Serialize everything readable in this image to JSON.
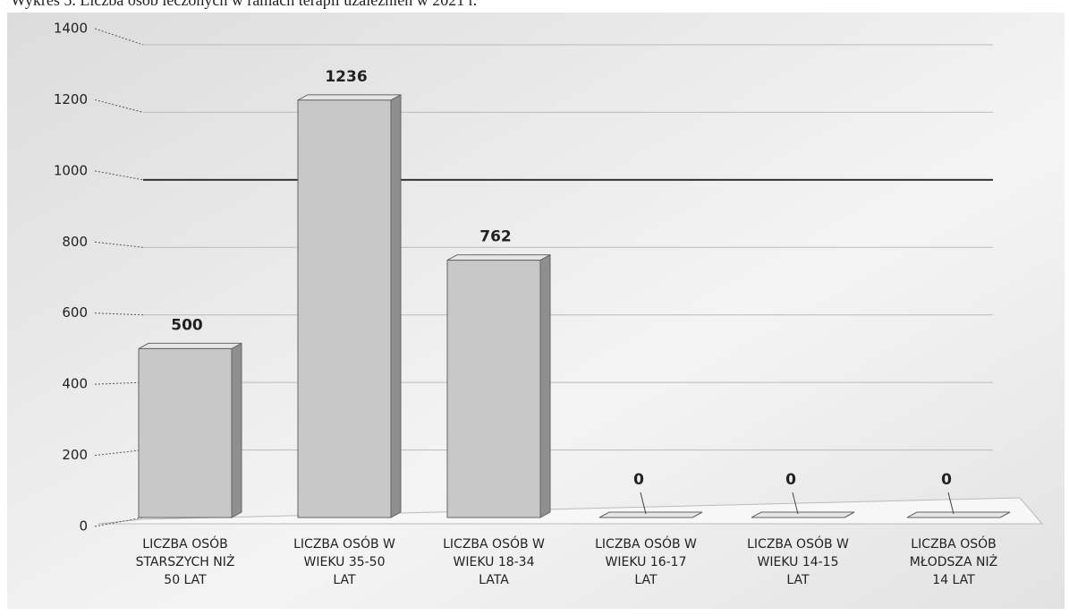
{
  "chart_data": {
    "type": "bar3d",
    "title": "Wykres 5. Liczba osób leczonych w ramach terapii uzależnień w 2021 r.",
    "categories": [
      [
        "LICZBA OSÓB",
        "STARSZYCH NIŻ",
        "50 LAT"
      ],
      [
        "LICZBA OSÓB W",
        "WIEKU 35-50",
        "LAT"
      ],
      [
        "LICZBA OSÓB W",
        "WIEKU 18-34",
        "LATA"
      ],
      [
        "LICZBA OSÓB W",
        "WIEKU 16-17",
        "LAT"
      ],
      [
        "LICZBA OSÓB W",
        "WIEKU 14-15",
        "LAT"
      ],
      [
        "LICZBA OSÓB",
        "MŁODSZA NIŻ",
        "14 LAT"
      ]
    ],
    "values": [
      500,
      1236,
      762,
      0,
      0,
      0
    ],
    "color": "#c8c8c8",
    "ylim": [
      0,
      1400
    ],
    "yticks": [
      0,
      200,
      400,
      600,
      800,
      1000,
      1200,
      1400
    ],
    "grid": true
  }
}
